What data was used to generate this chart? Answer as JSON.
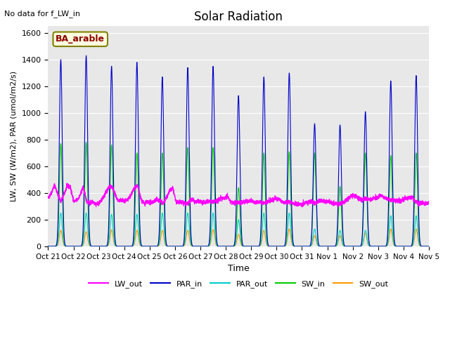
{
  "title": "Solar Radiation",
  "subtitle": "No data for f_LW_in",
  "annotation": "BA_arable",
  "ylabel": "LW, SW (W/m2), PAR (umol/m2/s)",
  "xlabel": "Time",
  "xtick_labels": [
    "Oct 21",
    "Oct 22",
    "Oct 23",
    "Oct 24",
    "Oct 25",
    "Oct 26",
    "Oct 27",
    "Oct 28",
    "Oct 29",
    "Oct 30",
    "Oct 31",
    "Nov 1",
    "Nov 2",
    "Nov 3",
    "Nov 4",
    "Nov 5"
  ],
  "ylim": [
    0,
    1650
  ],
  "ytick_vals": [
    0,
    200,
    400,
    600,
    800,
    1000,
    1200,
    1400,
    1600
  ],
  "n_days": 15,
  "colors": {
    "LW_out": "#ff00ff",
    "PAR_in": "#0000cc",
    "PAR_out": "#00cccc",
    "SW_in": "#00cc00",
    "SW_out": "#ff9900"
  },
  "background_color": "#e8e8e8",
  "peak_heights_PAR_in": [
    1400,
    1430,
    1350,
    1380,
    1270,
    1340,
    1350,
    1130,
    1270,
    1300,
    920,
    910,
    1010,
    1240,
    1280
  ],
  "peak_heights_PAR_out": [
    250,
    250,
    240,
    240,
    250,
    250,
    250,
    200,
    250,
    250,
    130,
    120,
    120,
    230,
    230
  ],
  "peak_heights_SW_in": [
    770,
    780,
    760,
    700,
    700,
    740,
    740,
    440,
    700,
    710,
    700,
    450,
    700,
    680,
    700
  ],
  "peak_heights_SW_out": [
    120,
    110,
    125,
    120,
    120,
    120,
    125,
    90,
    120,
    130,
    80,
    80,
    100,
    130,
    130
  ],
  "LW_out_values": [
    360,
    400,
    460,
    395,
    335,
    390,
    455,
    440,
    335,
    345,
    380,
    445,
    340,
    320,
    335,
    315,
    325,
    355,
    400,
    445,
    450,
    380,
    340,
    345,
    335,
    350,
    390,
    440,
    450,
    355,
    320,
    330,
    330,
    335,
    350,
    340,
    320,
    370,
    415,
    435,
    330,
    330,
    330,
    320,
    330,
    350,
    330,
    340,
    330,
    330,
    340,
    335,
    335,
    340,
    360,
    360,
    380,
    335,
    325,
    330,
    325,
    330,
    340,
    340,
    335,
    330,
    335,
    325,
    325,
    340,
    345,
    360,
    355,
    335,
    330,
    330,
    330,
    320,
    315,
    315,
    320,
    330,
    335,
    330,
    330,
    345,
    340,
    340,
    335,
    320,
    320,
    315,
    325,
    340,
    360,
    380,
    380,
    360,
    345,
    355,
    355,
    350,
    360,
    370,
    385,
    370,
    355,
    350,
    345,
    340,
    340,
    355,
    360,
    365,
    365,
    330,
    325,
    325,
    320,
    330
  ],
  "legend_entries": [
    "LW_out",
    "PAR_in",
    "PAR_out",
    "SW_in",
    "SW_out"
  ]
}
